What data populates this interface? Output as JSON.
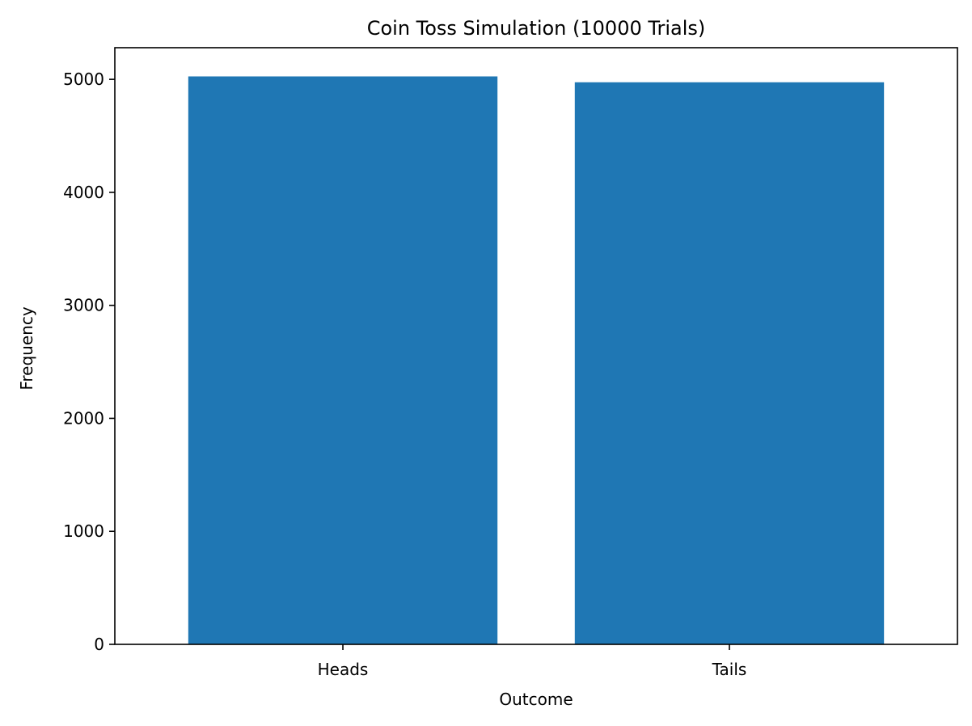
{
  "chart_data": {
    "type": "bar",
    "title": "Coin Toss Simulation (10000 Trials)",
    "xlabel": "Outcome",
    "ylabel": "Frequency",
    "categories": [
      "Heads",
      "Tails"
    ],
    "values": [
      5026,
      4974
    ],
    "ylim": [
      0,
      5280
    ],
    "yticks": [
      0,
      1000,
      2000,
      3000,
      4000,
      5000
    ],
    "bar_color": "#1f77b4",
    "grid": false,
    "legend": "none"
  }
}
